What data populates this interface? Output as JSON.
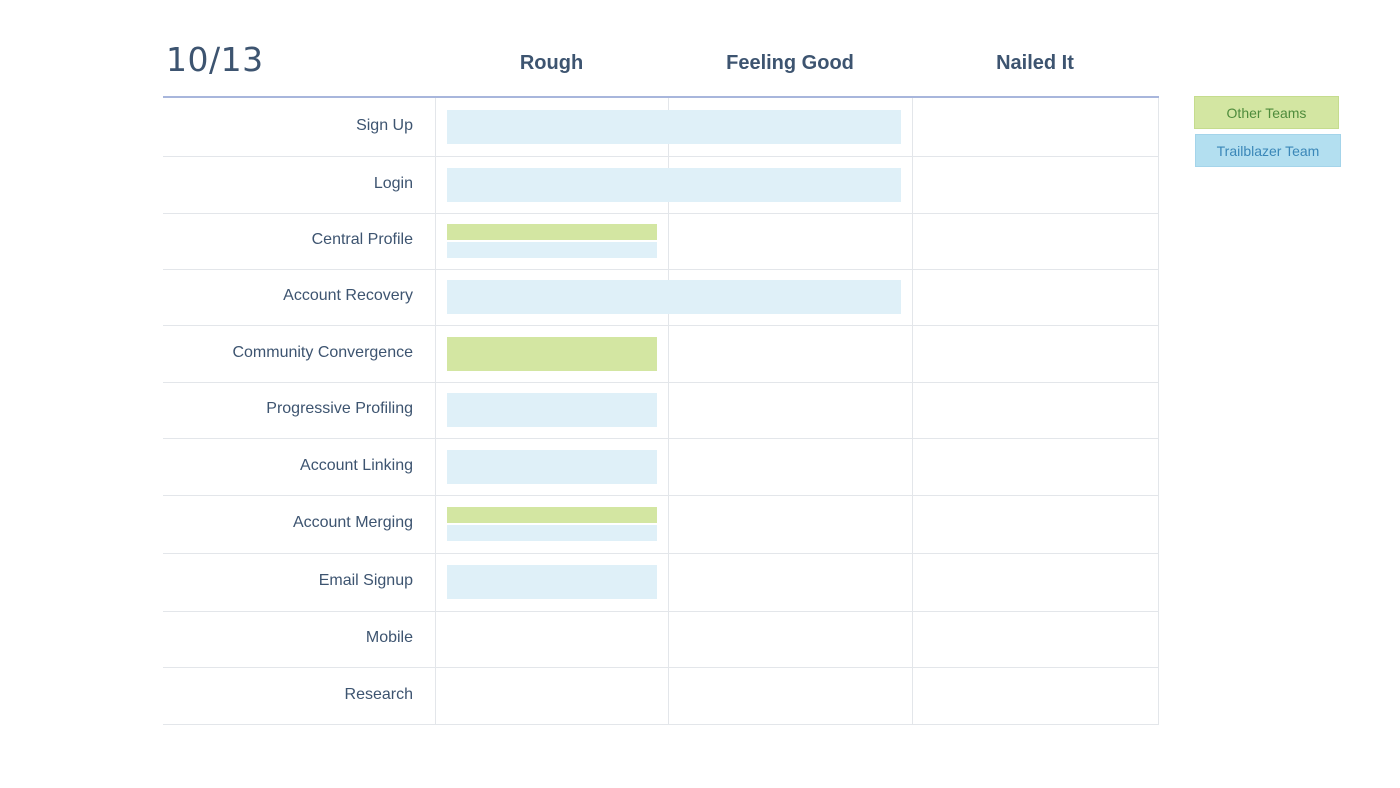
{
  "title": "10/13",
  "chart_data": {
    "type": "bar",
    "orientation": "horizontal",
    "columns": [
      "Rough",
      "Feeling Good",
      "Nailed It"
    ],
    "categories": [
      "Sign Up",
      "Login",
      "Central Profile",
      "Account Recovery",
      "Community Convergence",
      "Progressive Profiling",
      "Account Linking",
      "Account Merging",
      "Email Signup",
      "Mobile",
      "Research"
    ],
    "series": [
      {
        "name": "Other Teams",
        "values": [
          0,
          0,
          1,
          0,
          1,
          0,
          0,
          1,
          0,
          0,
          0
        ]
      },
      {
        "name": "Trailblazer Team",
        "values": [
          2,
          2,
          1,
          2,
          0,
          1,
          1,
          1,
          1,
          0,
          0
        ]
      }
    ],
    "value_unit": "stage reached (1 = Rough, 2 = Feeling Good, 3 = Nailed It)",
    "xlim": [
      0,
      3
    ],
    "legend_position": "right",
    "colors": {
      "Other Teams": "#d3e6a2",
      "Trailblazer Team": "#dff0f8"
    }
  },
  "legend": {
    "other_label": "Other Teams",
    "trail_label": "Trailblazer Team"
  }
}
